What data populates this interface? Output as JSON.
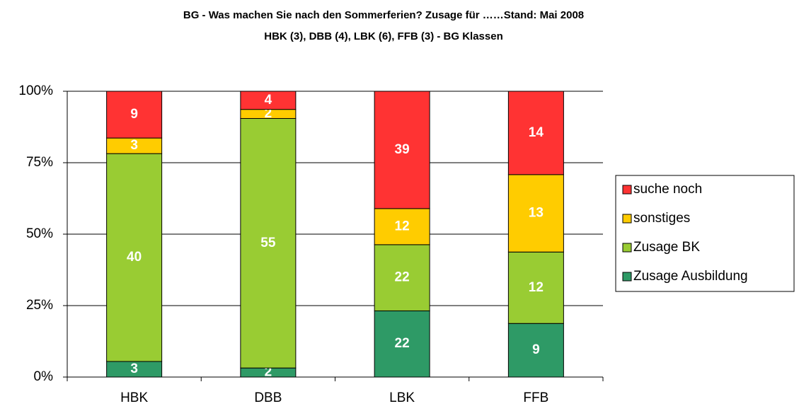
{
  "chart_data": {
    "type": "bar",
    "stacked": "percent",
    "title": "BG - Was machen Sie nach den Sommerferien? Zusage für ……Stand: Mai 2008",
    "subtitle": "HBK (3), DBB (4), LBK (6), FFB (3) - BG Klassen",
    "categories": [
      "HBK",
      "DBB",
      "LBK",
      "FFB"
    ],
    "series": [
      {
        "name": "Zusage Ausbildung",
        "color": "#2e9a66",
        "values": [
          3,
          2,
          22,
          9
        ]
      },
      {
        "name": "Zusage BK",
        "color": "#99cc33",
        "values": [
          40,
          55,
          22,
          12
        ]
      },
      {
        "name": "sonstiges",
        "color": "#ffcc00",
        "values": [
          3,
          2,
          12,
          13
        ]
      },
      {
        "name": "suche noch",
        "color": "#ff3333",
        "values": [
          9,
          4,
          39,
          14
        ]
      }
    ],
    "ylim": [
      0,
      100
    ],
    "yticks": [
      {
        "value": 0,
        "label": "0%"
      },
      {
        "value": 25,
        "label": "25%"
      },
      {
        "value": 50,
        "label": "50%"
      },
      {
        "value": 75,
        "label": "75%"
      },
      {
        "value": 100,
        "label": "100%"
      }
    ],
    "grid": true,
    "legend": "right"
  }
}
